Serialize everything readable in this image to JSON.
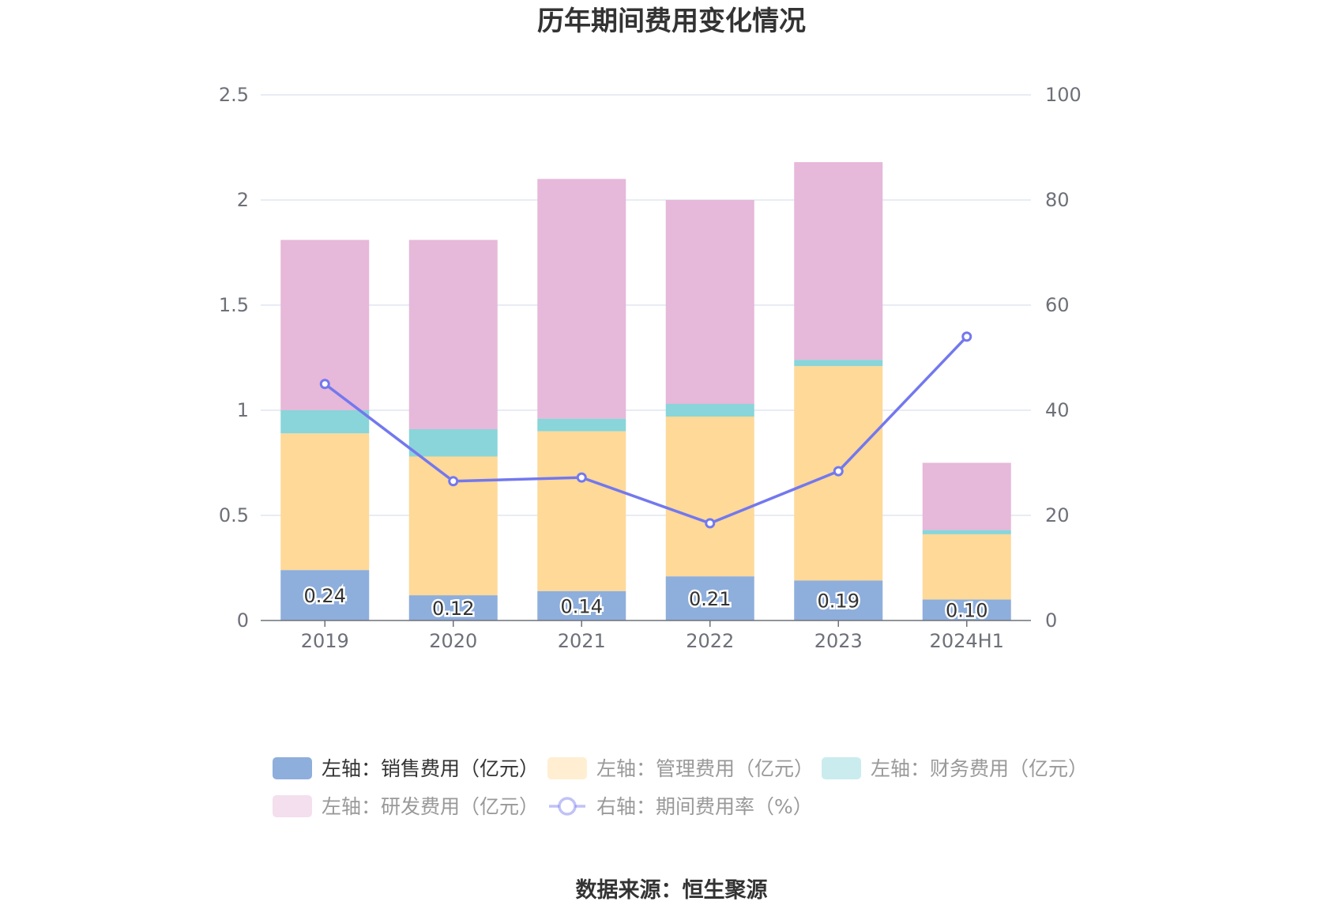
{
  "chart_data": {
    "type": "bar",
    "stacked": true,
    "title": "历年期间费用变化情况",
    "categories": [
      "2019",
      "2020",
      "2021",
      "2022",
      "2023",
      "2024H1"
    ],
    "left_axis": {
      "ylim": [
        0,
        2.5
      ],
      "ticks": [
        "0",
        "0.5",
        "1",
        "1.5",
        "2",
        "2.5"
      ],
      "tick_values": [
        0,
        0.5,
        1,
        1.5,
        2,
        2.5
      ]
    },
    "right_axis": {
      "ylim": [
        0,
        100
      ],
      "ticks": [
        "0",
        "20",
        "40",
        "60",
        "80",
        "100"
      ],
      "tick_values": [
        0,
        20,
        40,
        60,
        80,
        100
      ]
    },
    "series": [
      {
        "name": "左轴：销售费用（亿元）",
        "type": "bar",
        "axis": "left",
        "color": "#8eaedc",
        "values": [
          0.24,
          0.12,
          0.14,
          0.21,
          0.19,
          0.1
        ],
        "labels": [
          "0.24",
          "0.12",
          "0.14",
          "0.21",
          "0.19",
          "0.10"
        ],
        "legend_active": true
      },
      {
        "name": "左轴：管理费用（亿元）",
        "type": "bar",
        "axis": "left",
        "color": "#fed998",
        "values": [
          0.65,
          0.66,
          0.76,
          0.76,
          1.02,
          0.31
        ],
        "legend_active": false
      },
      {
        "name": "左轴：财务费用（亿元）",
        "type": "bar",
        "axis": "left",
        "color": "#89d5d9",
        "values": [
          0.11,
          0.13,
          0.06,
          0.06,
          0.03,
          0.02
        ],
        "legend_active": false
      },
      {
        "name": "左轴：研发费用（亿元）",
        "type": "bar",
        "axis": "left",
        "color": "#e6b8d9",
        "values": [
          0.81,
          0.9,
          1.14,
          0.97,
          0.94,
          0.32
        ],
        "legend_active": false
      },
      {
        "name": "右轴：期间费用率（%）",
        "type": "line",
        "axis": "right",
        "color": "#7378ee",
        "values": [
          45.0,
          26.5,
          27.2,
          18.5,
          28.4,
          54.0
        ],
        "legend_active": false
      }
    ],
    "legend_colors": {
      "active_text": "#333333",
      "inactive_text": "#999999"
    }
  },
  "source": "数据来源：恒生聚源"
}
